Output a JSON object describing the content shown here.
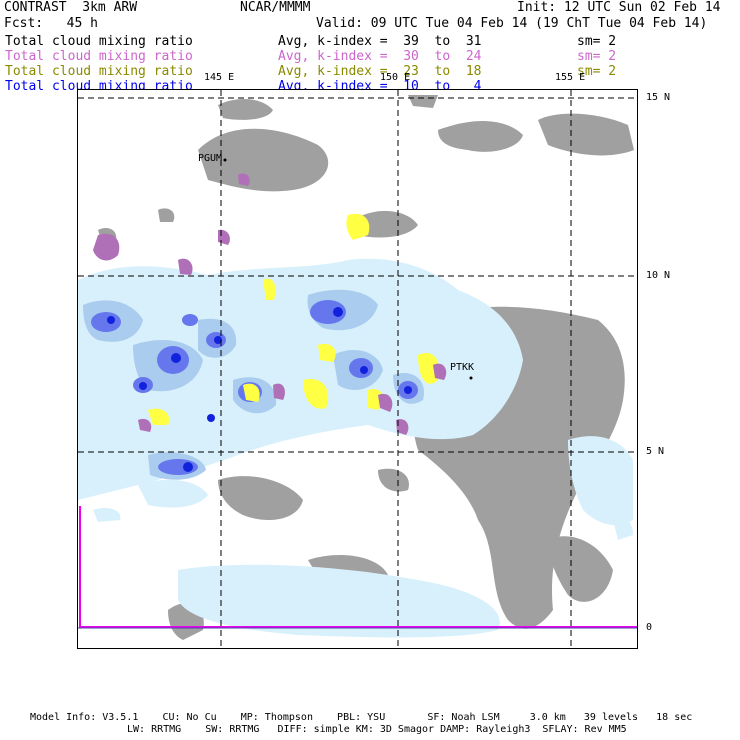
{
  "header": {
    "left_line1": "CONTRAST  3km ARW",
    "center_line1": "NCAR/MMMM",
    "right_line1": "Init: 12 UTC Sun 02 Feb 14",
    "left_line2": "Fcst:   45 h",
    "right_line2": "Valid: 09 UTC Tue 04 Feb 14 (19 ChT Tue 04 Feb 14)"
  },
  "fields": [
    {
      "name": "Total cloud mixing ratio",
      "avg": "Avg, k-index =  39  to  31",
      "sm": "sm= 2",
      "color": "#000000"
    },
    {
      "name": "Total cloud mixing ratio",
      "avg": "Avg, k-index =  30  to  24",
      "sm": "sm= 2",
      "color": "#cc66cc"
    },
    {
      "name": "Total cloud mixing ratio",
      "avg": "Avg, k-index =  23  to  18",
      "sm": "sm= 2",
      "color": "#8a8a00"
    },
    {
      "name": "Total cloud mixing ratio",
      "avg": "Avg, k-index =  10  to   4",
      "sm": "",
      "color": "#0000ee"
    }
  ],
  "map": {
    "lon_labels": [
      "145 E",
      "150 E",
      "155 E"
    ],
    "lat_labels": [
      "15 N",
      "10 N",
      "5 N",
      "0"
    ],
    "stations": [
      "PGUM",
      "PTKK"
    ],
    "colors": {
      "gray_cloud": "#a0a0a0",
      "light_blue": "#d8f0fb",
      "mid_blue": "#aaccee",
      "deep_blue": "#6677ee",
      "core_blue": "#1122dd",
      "yellow": "#ffff44",
      "purple": "#b070b8",
      "magenta_line": "#ee00ee"
    }
  },
  "footer": {
    "line1": "Model Info: V3.5.1    CU: No Cu    MP: Thompson    PBL: YSU       SF: Noah LSM     3.0 km   39 levels   18 sec",
    "line2": "LW: RRTMG    SW: RRTMG   DIFF: simple KM: 3D Smagor DAMP: Rayleigh3  SFLAY: Rev MM5"
  }
}
